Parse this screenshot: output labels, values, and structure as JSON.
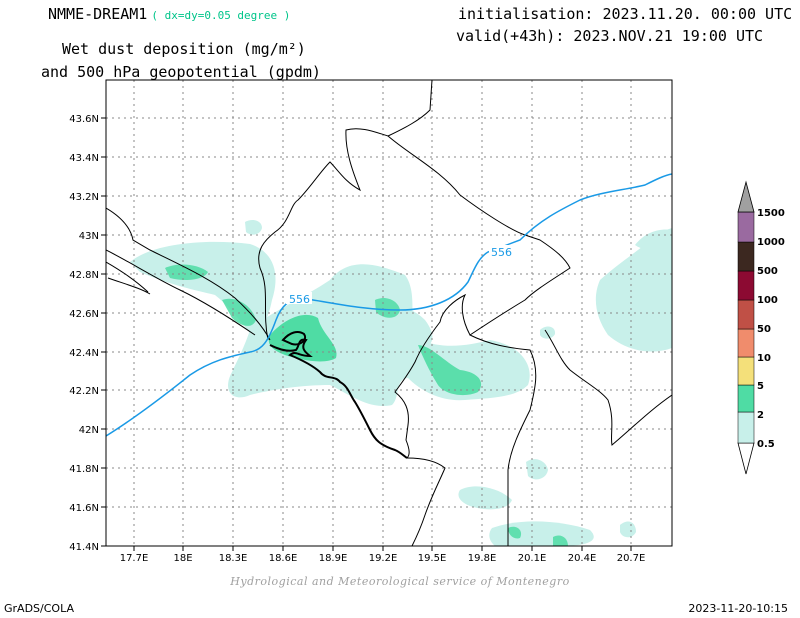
{
  "header": {
    "model": "NMME-DREAM1",
    "resolution": "( dx=dy=0.05 degree )",
    "title_line1": "Wet dust deposition (mg/m²)",
    "title_line2": "and 500 hPa geopotential (gpdm)",
    "init": "initialisation: 2023.11.20. 00:00 UTC",
    "valid": "valid(+43h): 2023.NOV.21 19:00 UTC"
  },
  "map": {
    "lon_range": [
      17.5,
      21.0
    ],
    "lat_range": [
      41.4,
      43.8
    ],
    "lon_ticks": [
      "17.7E",
      "18E",
      "18.3E",
      "18.6E",
      "18.9E",
      "19.2E",
      "19.5E",
      "19.8E",
      "20.1E",
      "20.4E",
      "20.7E"
    ],
    "lat_ticks": [
      "41.4N",
      "41.6N",
      "41.8N",
      "42N",
      "42.2N",
      "42.4N",
      "42.6N",
      "42.8N",
      "43N",
      "43.2N",
      "43.4N",
      "43.6N"
    ],
    "contour_label_a": "556",
    "contour_label_b": "556",
    "contour_color": "#1a9ae6",
    "grid": true
  },
  "legend": {
    "levels": [
      "0.5",
      "2",
      "5",
      "10",
      "50",
      "100",
      "500",
      "1000",
      "1500"
    ],
    "colors": [
      "#c8f0ea",
      "#4fdca4",
      "#f4e07a",
      "#f08c6c",
      "#c05046",
      "#8c0a32",
      "#3c2820",
      "#9a6aa0",
      "#a0a0a0"
    ]
  },
  "footer": {
    "credit": "Hydrological and Meteorological service of Montenegro",
    "software": "GrADS/COLA",
    "timestamp": "2023-11-20-10:15"
  }
}
